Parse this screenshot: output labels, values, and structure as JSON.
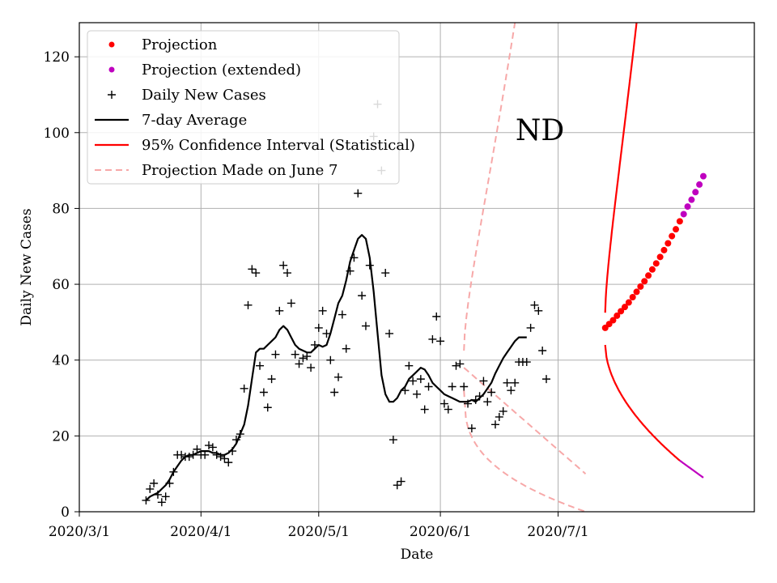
{
  "chart_data": {
    "type": "line",
    "title": "",
    "xlabel": "Date",
    "ylabel": "Daily New Cases",
    "annotation": "ND",
    "grid": true,
    "legend_position": "top-left",
    "x_range": [
      "2020-03-01",
      "2020-08-20"
    ],
    "ylim": [
      0,
      129
    ],
    "x_ticks": [
      {
        "date": "2020-03-01",
        "label": "2020/3/1"
      },
      {
        "date": "2020-04-01",
        "label": "2020/4/1"
      },
      {
        "date": "2020-05-01",
        "label": "2020/5/1"
      },
      {
        "date": "2020-06-01",
        "label": "2020/6/1"
      },
      {
        "date": "2020-07-01",
        "label": "2020/7/1"
      }
    ],
    "y_ticks": [
      0,
      20,
      40,
      60,
      80,
      100,
      120
    ],
    "colors": {
      "projection": "#ff0000",
      "projection_extended": "#bf00bf",
      "daily_cases": "#000000",
      "average": "#000000",
      "confidence": "#ff0000",
      "june7": "#f7a8a8"
    },
    "legend": [
      {
        "key": "projection",
        "label": "Projection",
        "marker": "dot"
      },
      {
        "key": "projection_extended",
        "label": "Projection (extended)",
        "marker": "dot"
      },
      {
        "key": "daily_cases",
        "label": "Daily New Cases",
        "marker": "plus"
      },
      {
        "key": "average",
        "label": "7-day Average",
        "marker": "line"
      },
      {
        "key": "confidence",
        "label": "95% Confidence Interval (Statistical)",
        "marker": "line"
      },
      {
        "key": "june7",
        "label": "Projection Made on June 7",
        "marker": "dashed"
      }
    ],
    "daily_cases": {
      "start_date": "2020-03-18",
      "values": [
        3,
        6,
        7.5,
        4.5,
        2.5,
        4,
        7.5,
        10.5,
        15,
        15,
        14.5,
        14.5,
        15,
        16.5,
        15,
        15,
        17.5,
        17,
        15,
        14.5,
        14,
        13,
        16,
        19,
        20.5,
        32.5,
        54.5,
        64,
        63,
        38.5,
        31.5,
        27.5,
        35,
        41.5,
        53,
        65,
        63,
        55,
        41.5,
        39,
        40.5,
        41,
        38,
        44,
        48.5,
        53,
        47,
        40,
        31.5,
        35.5,
        52,
        43,
        63.5,
        67,
        84,
        57,
        49,
        65,
        99,
        107.5,
        90,
        63,
        47,
        19,
        7,
        8,
        32,
        38.5,
        34.5,
        31,
        35,
        27,
        33,
        45.5,
        51.5,
        45,
        28.5,
        27,
        33,
        38.5,
        39,
        33,
        28.5,
        22,
        29.5,
        30.5,
        34.5,
        29,
        31.5,
        23,
        25,
        26.5,
        34,
        32,
        34,
        39.5,
        39.5,
        39.5,
        48.5,
        54.5,
        53,
        42.5,
        35
      ]
    },
    "seven_day_average": {
      "start_date": "2020-03-18",
      "values": [
        3,
        4,
        4.5,
        5,
        6,
        7,
        8.5,
        10.5,
        12,
        13.5,
        14.5,
        15,
        15,
        15.5,
        16,
        16,
        16,
        15.5,
        15.5,
        15,
        15,
        15.5,
        16.5,
        18,
        20.5,
        23,
        28,
        35,
        42,
        43,
        43,
        44,
        45,
        46,
        48,
        49,
        48,
        46,
        44,
        43,
        42.5,
        42,
        42,
        43,
        44,
        43.5,
        44,
        47,
        51,
        55,
        57,
        61,
        66,
        69,
        72,
        73,
        72,
        67,
        58,
        47,
        36,
        31,
        29,
        29,
        30,
        32,
        33,
        35,
        36,
        37,
        38,
        37.5,
        36,
        34,
        33,
        32,
        31,
        30.5,
        30,
        29.5,
        29,
        29,
        29,
        29.5,
        29,
        30,
        31,
        32.5,
        34,
        36.5,
        38.5,
        40.5,
        42,
        43.5,
        45,
        46,
        46,
        46
      ]
    },
    "projection": {
      "start_date": "2020-07-13",
      "values": [
        48.5,
        49.5,
        50.5,
        51.7,
        52.9,
        54,
        55.2,
        56.6,
        58,
        59.4,
        60.8,
        62.3,
        63.9,
        65.5,
        67.2,
        69,
        70.8,
        72.7,
        74.5,
        76.6
      ]
    },
    "projection_extended": {
      "start_date": "2020-08-02",
      "values": [
        78.5,
        80.5,
        82.3,
        84.3,
        86.3,
        88.5
      ]
    },
    "ci_upper": {
      "start_date": "2020-07-13",
      "end_date": "2020-07-21",
      "y_start": 52.5,
      "y_end": 129,
      "curvature": 1.6
    },
    "ci_lower": {
      "start_date": "2020-07-13",
      "end_date": "2020-08-01",
      "y_start": 44,
      "y_end": 13.5,
      "curvature": 0.55
    },
    "ci_lower_extended": {
      "start_date": "2020-08-01",
      "end_date": "2020-08-07",
      "y_start": 13.5,
      "y_end": 9
    },
    "june7_upper": {
      "start_date": "2020-06-07",
      "end_date": "2020-06-20",
      "y_start": 42.5,
      "y_end": 129,
      "curvature": 1.7
    },
    "june7_lower_mid": {
      "start_date": "2020-06-07",
      "end_date": "2020-07-08",
      "y_start": 38,
      "y_end": 10
    },
    "june7_lower": {
      "start_date": "2020-06-07",
      "end_date": "2020-07-08",
      "y_start": 32,
      "y_end": 0,
      "curvature": 0.35
    }
  }
}
